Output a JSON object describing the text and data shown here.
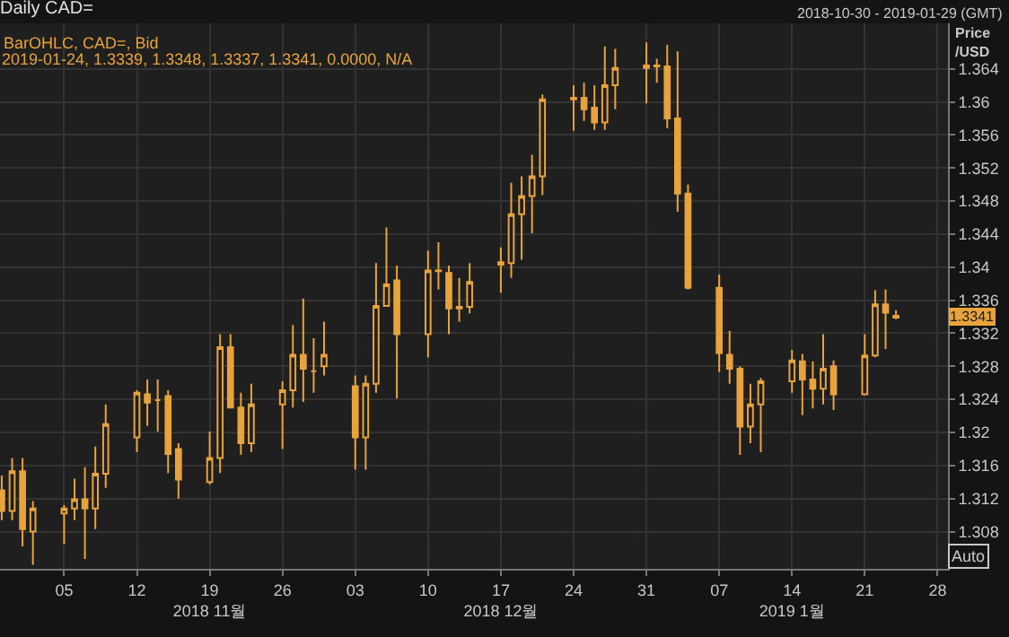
{
  "chart_data": {
    "type": "candlestick",
    "title": "Daily CAD=",
    "subtitle": "BarOHLC, CAD=, Bid",
    "ylabel": "Price\n/USD",
    "annotations": [
      "2018-10-30 - 2019-01-29 (GMT)",
      "2019-01-24, 1.3339, 1.3348, 1.3337, 1.3341, 0.0000, N/A",
      "Auto",
      "1.3341"
    ],
    "x": [
      "2018-10-30",
      "2018-10-31",
      "2018-11-01",
      "2018-11-02",
      "2018-11-05",
      "2018-11-06",
      "2018-11-07",
      "2018-11-08",
      "2018-11-09",
      "2018-11-12",
      "2018-11-13",
      "2018-11-14",
      "2018-11-15",
      "2018-11-16",
      "2018-11-19",
      "2018-11-20",
      "2018-11-21",
      "2018-11-22",
      "2018-11-23",
      "2018-11-26",
      "2018-11-27",
      "2018-11-28",
      "2018-11-29",
      "2018-11-30",
      "2018-12-03",
      "2018-12-04",
      "2018-12-05",
      "2018-12-06",
      "2018-12-07",
      "2018-12-10",
      "2018-12-11",
      "2018-12-12",
      "2018-12-13",
      "2018-12-14",
      "2018-12-17",
      "2018-12-18",
      "2018-12-19",
      "2018-12-20",
      "2018-12-21",
      "2018-12-24",
      "2018-12-25",
      "2018-12-26",
      "2018-12-27",
      "2018-12-28",
      "2018-12-31",
      "2019-01-01",
      "2019-01-02",
      "2019-01-03",
      "2019-01-04",
      "2019-01-07",
      "2019-01-08",
      "2019-01-09",
      "2019-01-10",
      "2019-01-11",
      "2019-01-14",
      "2019-01-15",
      "2019-01-16",
      "2019-01-17",
      "2019-01-18",
      "2019-01-21",
      "2019-01-22",
      "2019-01-23",
      "2019-01-24"
    ],
    "ohlc": [
      [
        1.313,
        1.3148,
        1.3094,
        1.3105
      ],
      [
        1.3105,
        1.3169,
        1.3094,
        1.3153
      ],
      [
        1.3153,
        1.3169,
        1.3062,
        1.3083
      ],
      [
        1.308,
        1.3117,
        1.304,
        1.3108
      ],
      [
        1.3102,
        1.3112,
        1.3065,
        1.3108
      ],
      [
        1.3108,
        1.3144,
        1.3094,
        1.3119
      ],
      [
        1.3119,
        1.3158,
        1.3047,
        1.3108
      ],
      [
        1.3108,
        1.3183,
        1.3083,
        1.315
      ],
      [
        1.315,
        1.3234,
        1.3133,
        1.321
      ],
      [
        1.3194,
        1.3251,
        1.3176,
        1.3248
      ],
      [
        1.3246,
        1.3264,
        1.3208,
        1.3236
      ],
      [
        1.3239,
        1.3264,
        1.3201,
        1.3239
      ],
      [
        1.3244,
        1.3251,
        1.3151,
        1.3174
      ],
      [
        1.318,
        1.3187,
        1.312,
        1.3143
      ],
      [
        1.314,
        1.3201,
        1.3137,
        1.3169
      ],
      [
        1.3169,
        1.3319,
        1.3151,
        1.3303
      ],
      [
        1.3303,
        1.3319,
        1.323,
        1.323
      ],
      [
        1.323,
        1.3248,
        1.3173,
        1.3187
      ],
      [
        1.3187,
        1.3259,
        1.3176,
        1.3234
      ],
      [
        1.3234,
        1.3262,
        1.318,
        1.3251
      ],
      [
        1.3251,
        1.333,
        1.323,
        1.3294
      ],
      [
        1.3294,
        1.3362,
        1.3237,
        1.3277
      ],
      [
        1.3274,
        1.3314,
        1.3248,
        1.3274
      ],
      [
        1.328,
        1.3334,
        1.3269,
        1.3294
      ],
      [
        1.3256,
        1.3269,
        1.3155,
        1.3194
      ],
      [
        1.3194,
        1.3269,
        1.3155,
        1.3259
      ],
      [
        1.3259,
        1.3405,
        1.3248,
        1.3353
      ],
      [
        1.3353,
        1.3448,
        1.3352,
        1.3379
      ],
      [
        1.3384,
        1.3402,
        1.3241,
        1.3319
      ],
      [
        1.3319,
        1.342,
        1.3291,
        1.3396
      ],
      [
        1.3396,
        1.343,
        1.3373,
        1.3395
      ],
      [
        1.3393,
        1.3402,
        1.3319,
        1.335
      ],
      [
        1.335,
        1.3387,
        1.3334,
        1.3352
      ],
      [
        1.3352,
        1.3405,
        1.3344,
        1.3382
      ],
      [
        1.3403,
        1.3424,
        1.3369,
        1.3406
      ],
      [
        1.3405,
        1.3502,
        1.3387,
        1.3464
      ],
      [
        1.3464,
        1.351,
        1.3409,
        1.3486
      ],
      [
        1.3486,
        1.3536,
        1.3441,
        1.351
      ],
      [
        1.351,
        1.3609,
        1.3487,
        1.3603
      ],
      [
        1.3603,
        1.362,
        1.3565,
        1.3605
      ],
      [
        1.3605,
        1.3623,
        1.3577,
        1.3591
      ],
      [
        1.3593,
        1.362,
        1.3566,
        1.3575
      ],
      [
        1.3575,
        1.3667,
        1.3566,
        1.362
      ],
      [
        1.362,
        1.3664,
        1.3591,
        1.3641
      ],
      [
        1.3641,
        1.3672,
        1.3598,
        1.3644
      ],
      [
        1.3644,
        1.3652,
        1.3623,
        1.3643
      ],
      [
        1.3643,
        1.3669,
        1.3568,
        1.358
      ],
      [
        1.358,
        1.3661,
        1.3467,
        1.3489
      ],
      [
        1.3489,
        1.35,
        1.3373,
        1.3375
      ],
      [
        1.3375,
        1.3391,
        1.3273,
        1.3296
      ],
      [
        1.3294,
        1.3323,
        1.3259,
        1.3277
      ],
      [
        1.3277,
        1.328,
        1.3173,
        1.3207
      ],
      [
        1.3207,
        1.3259,
        1.3187,
        1.3234
      ],
      [
        1.3234,
        1.3266,
        1.3176,
        1.3262
      ],
      [
        1.3262,
        1.33,
        1.3248,
        1.3287
      ],
      [
        1.3286,
        1.3295,
        1.3221,
        1.3264
      ],
      [
        1.3264,
        1.3286,
        1.3229,
        1.3253
      ],
      [
        1.3253,
        1.3319,
        1.3234,
        1.3277
      ],
      [
        1.328,
        1.3287,
        1.3227,
        1.3246
      ],
      [
        1.3246,
        1.3319,
        1.3246,
        1.3293
      ],
      [
        1.3293,
        1.3372,
        1.3291,
        1.3355
      ],
      [
        1.3355,
        1.3373,
        1.3301,
        1.3345
      ],
      [
        1.3339,
        1.3348,
        1.3337,
        1.3341
      ]
    ],
    "color": "#e8a33c",
    "xlim": [
      "2018-10-29T20:00",
      "2019-01-29"
    ],
    "xticks": [
      {
        "value": "2018-11-05",
        "label": "05"
      },
      {
        "value": "2018-11-12",
        "label": "12"
      },
      {
        "value": "2018-11-19",
        "label": "19\n2018 11월"
      },
      {
        "value": "2018-11-26",
        "label": "26"
      },
      {
        "value": "2018-12-03",
        "label": "03"
      },
      {
        "value": "2018-12-10",
        "label": "10"
      },
      {
        "value": "2018-12-17",
        "label": "17\n2018 12월"
      },
      {
        "value": "2018-12-24",
        "label": "24"
      },
      {
        "value": "2018-12-31",
        "label": "31"
      },
      {
        "value": "2019-01-07",
        "label": "07"
      },
      {
        "value": "2019-01-14",
        "label": "14\n2019 1월"
      },
      {
        "value": "2019-01-21",
        "label": "21"
      },
      {
        "value": "2019-01-28",
        "label": "28"
      }
    ],
    "ylim": [
      1.3035,
      1.3695
    ],
    "yticks": [
      1.308,
      1.312,
      1.316,
      1.32,
      1.324,
      1.328,
      1.332,
      1.336,
      1.34,
      1.344,
      1.348,
      1.352,
      1.356,
      1.36,
      1.364
    ],
    "grid": true
  }
}
